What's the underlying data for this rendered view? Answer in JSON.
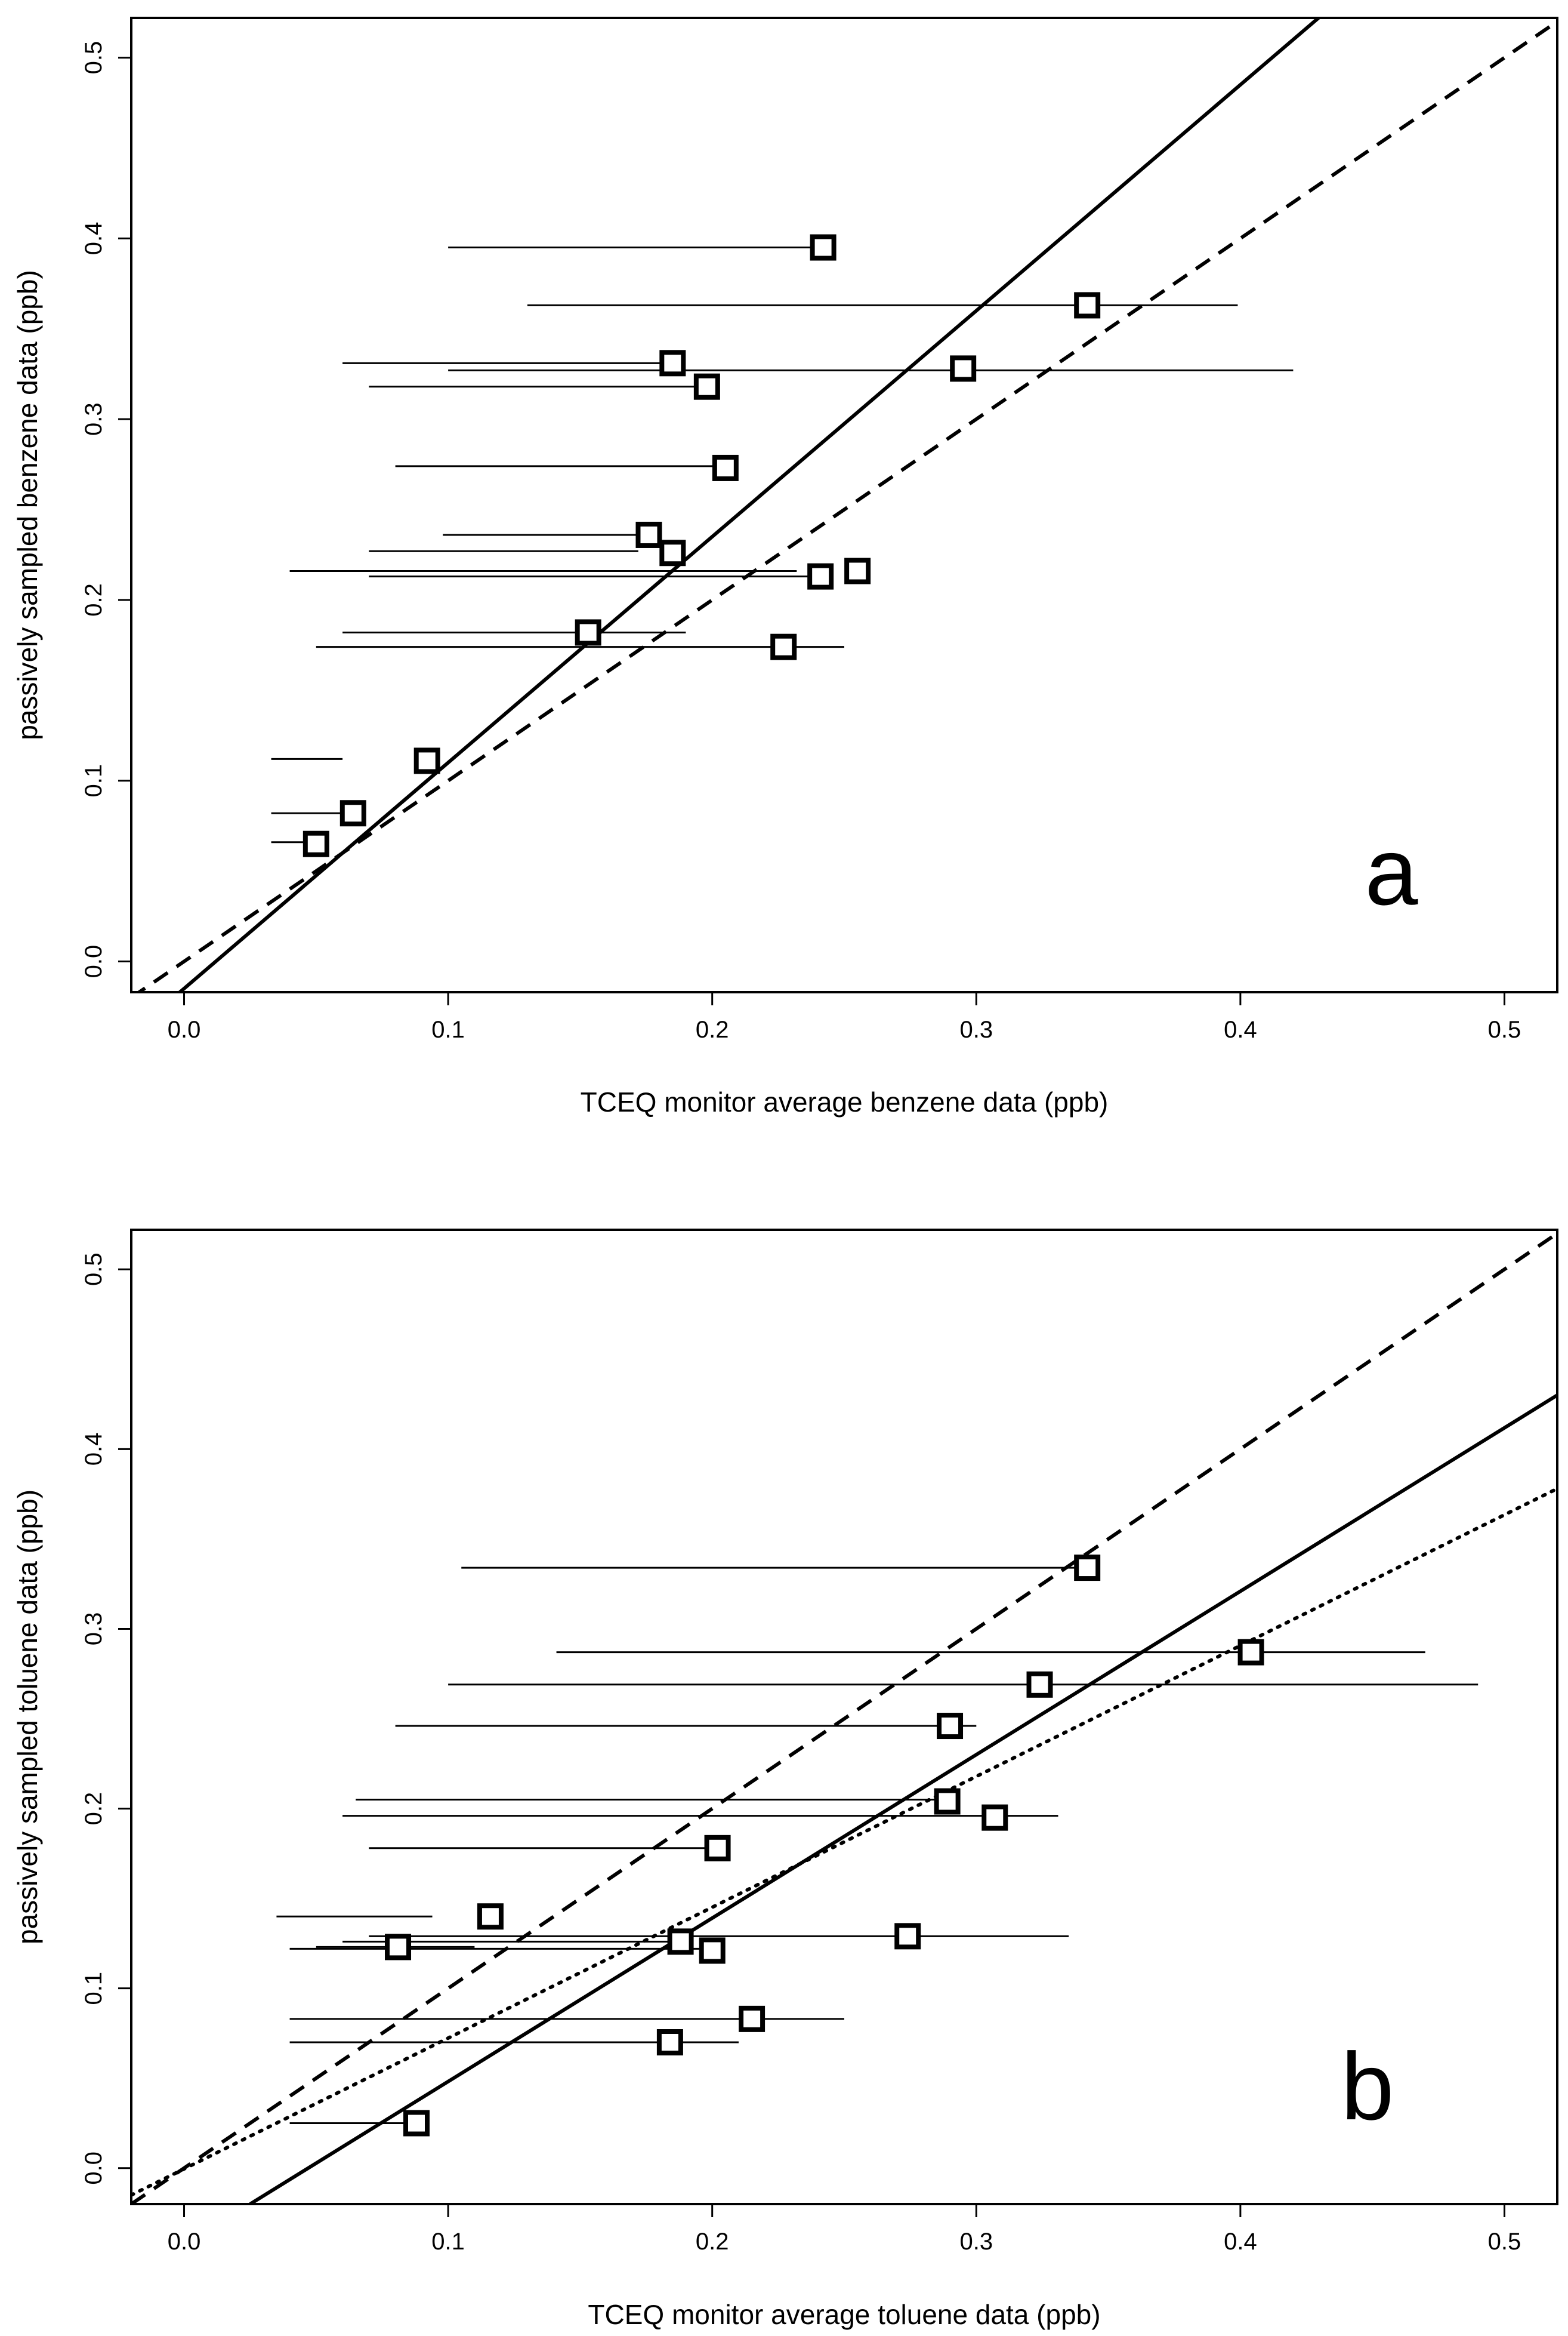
{
  "chart_data": [
    {
      "type": "scatter",
      "panel_label": "a",
      "xlabel": "TCEQ monitor average benzene data (ppb)",
      "ylabel": "passively sampled benzene data (ppb)",
      "xlim": [
        -0.02,
        0.52
      ],
      "ylim": [
        -0.017,
        0.522
      ],
      "xticks": [
        0.0,
        0.1,
        0.2,
        0.3,
        0.4,
        0.5
      ],
      "yticks": [
        0.0,
        0.1,
        0.2,
        0.3,
        0.4,
        0.5
      ],
      "xtick_labels": [
        "0.0",
        "0.1",
        "0.2",
        "0.3",
        "0.4",
        "0.5"
      ],
      "ytick_labels": [
        "0.0",
        "0.1",
        "0.2",
        "0.3",
        "0.4",
        "0.5"
      ],
      "points": [
        {
          "x": 0.242,
          "y": 0.395
        },
        {
          "x": 0.342,
          "y": 0.363
        },
        {
          "x": 0.185,
          "y": 0.331
        },
        {
          "x": 0.295,
          "y": 0.328
        },
        {
          "x": 0.198,
          "y": 0.318
        },
        {
          "x": 0.205,
          "y": 0.273
        },
        {
          "x": 0.176,
          "y": 0.236
        },
        {
          "x": 0.185,
          "y": 0.226
        },
        {
          "x": 0.241,
          "y": 0.213
        },
        {
          "x": 0.255,
          "y": 0.216
        },
        {
          "x": 0.153,
          "y": 0.182
        },
        {
          "x": 0.227,
          "y": 0.174
        },
        {
          "x": 0.092,
          "y": 0.111
        },
        {
          "x": 0.064,
          "y": 0.082
        },
        {
          "x": 0.05,
          "y": 0.065
        }
      ],
      "error_bars": [
        {
          "y": 0.395,
          "x_min": 0.1,
          "x_max": 0.242
        },
        {
          "y": 0.363,
          "x_min": 0.13,
          "x_max": 0.399
        },
        {
          "y": 0.331,
          "x_min": 0.06,
          "x_max": 0.185
        },
        {
          "y": 0.327,
          "x_min": 0.1,
          "x_max": 0.42
        },
        {
          "y": 0.318,
          "x_min": 0.07,
          "x_max": 0.198
        },
        {
          "y": 0.274,
          "x_min": 0.08,
          "x_max": 0.205
        },
        {
          "y": 0.236,
          "x_min": 0.098,
          "x_max": 0.176
        },
        {
          "y": 0.227,
          "x_min": 0.07,
          "x_max": 0.172
        },
        {
          "y": 0.216,
          "x_min": 0.04,
          "x_max": 0.232
        },
        {
          "y": 0.213,
          "x_min": 0.07,
          "x_max": 0.241
        },
        {
          "y": 0.182,
          "x_min": 0.06,
          "x_max": 0.19
        },
        {
          "y": 0.174,
          "x_min": 0.05,
          "x_max": 0.25
        },
        {
          "y": 0.112,
          "x_min": 0.033,
          "x_max": 0.06
        },
        {
          "y": 0.082,
          "x_min": 0.033,
          "x_max": 0.064
        },
        {
          "y": 0.066,
          "x_min": 0.033,
          "x_max": 0.05
        }
      ],
      "lines": [
        {
          "style": "solid",
          "x1": -0.02,
          "y1": -0.04,
          "x2": 0.52,
          "y2": 0.635
        },
        {
          "style": "dashed",
          "x1": -0.02,
          "y1": -0.02,
          "x2": 0.52,
          "y2": 0.52
        }
      ]
    },
    {
      "type": "scatter",
      "panel_label": "b",
      "xlabel": "TCEQ monitor average toluene data (ppb)",
      "ylabel": "passively sampled toluene data (ppb)",
      "xlim": [
        -0.02,
        0.52
      ],
      "ylim": [
        -0.02,
        0.522
      ],
      "xticks": [
        0.0,
        0.1,
        0.2,
        0.3,
        0.4,
        0.5
      ],
      "yticks": [
        0.0,
        0.1,
        0.2,
        0.3,
        0.4,
        0.5
      ],
      "xtick_labels": [
        "0.0",
        "0.1",
        "0.2",
        "0.3",
        "0.4",
        "0.5"
      ],
      "ytick_labels": [
        "0.0",
        "0.1",
        "0.2",
        "0.3",
        "0.4",
        "0.5"
      ],
      "points": [
        {
          "x": 0.342,
          "y": 0.334
        },
        {
          "x": 0.404,
          "y": 0.287
        },
        {
          "x": 0.324,
          "y": 0.269
        },
        {
          "x": 0.29,
          "y": 0.246
        },
        {
          "x": 0.289,
          "y": 0.204
        },
        {
          "x": 0.307,
          "y": 0.195
        },
        {
          "x": 0.202,
          "y": 0.178
        },
        {
          "x": 0.116,
          "y": 0.14
        },
        {
          "x": 0.081,
          "y": 0.123
        },
        {
          "x": 0.188,
          "y": 0.126
        },
        {
          "x": 0.2,
          "y": 0.121
        },
        {
          "x": 0.274,
          "y": 0.129
        },
        {
          "x": 0.215,
          "y": 0.083
        },
        {
          "x": 0.184,
          "y": 0.07
        },
        {
          "x": 0.088,
          "y": 0.025
        }
      ],
      "error_bars": [
        {
          "y": 0.334,
          "x_min": 0.105,
          "x_max": 0.342
        },
        {
          "y": 0.287,
          "x_min": 0.141,
          "x_max": 0.47
        },
        {
          "y": 0.269,
          "x_min": 0.1,
          "x_max": 0.49
        },
        {
          "y": 0.246,
          "x_min": 0.08,
          "x_max": 0.3
        },
        {
          "y": 0.205,
          "x_min": 0.065,
          "x_max": 0.289
        },
        {
          "y": 0.196,
          "x_min": 0.06,
          "x_max": 0.331
        },
        {
          "y": 0.178,
          "x_min": 0.07,
          "x_max": 0.202
        },
        {
          "y": 0.14,
          "x_min": 0.035,
          "x_max": 0.094
        },
        {
          "y": 0.129,
          "x_min": 0.07,
          "x_max": 0.335
        },
        {
          "y": 0.126,
          "x_min": 0.06,
          "x_max": 0.188
        },
        {
          "y": 0.123,
          "x_min": 0.05,
          "x_max": 0.11
        },
        {
          "y": 0.122,
          "x_min": 0.04,
          "x_max": 0.2
        },
        {
          "y": 0.083,
          "x_min": 0.04,
          "x_max": 0.25
        },
        {
          "y": 0.07,
          "x_min": 0.04,
          "x_max": 0.21
        },
        {
          "y": 0.025,
          "x_min": 0.04,
          "x_max": 0.088
        }
      ],
      "lines": [
        {
          "style": "solid",
          "x1": 0.025,
          "y1": -0.02,
          "x2": 0.52,
          "y2": 0.43
        },
        {
          "style": "dashed",
          "x1": -0.02,
          "y1": -0.02,
          "x2": 0.52,
          "y2": 0.52
        },
        {
          "style": "dotted",
          "x1": -0.02,
          "y1": -0.015,
          "x2": 0.52,
          "y2": 0.378
        }
      ]
    }
  ]
}
